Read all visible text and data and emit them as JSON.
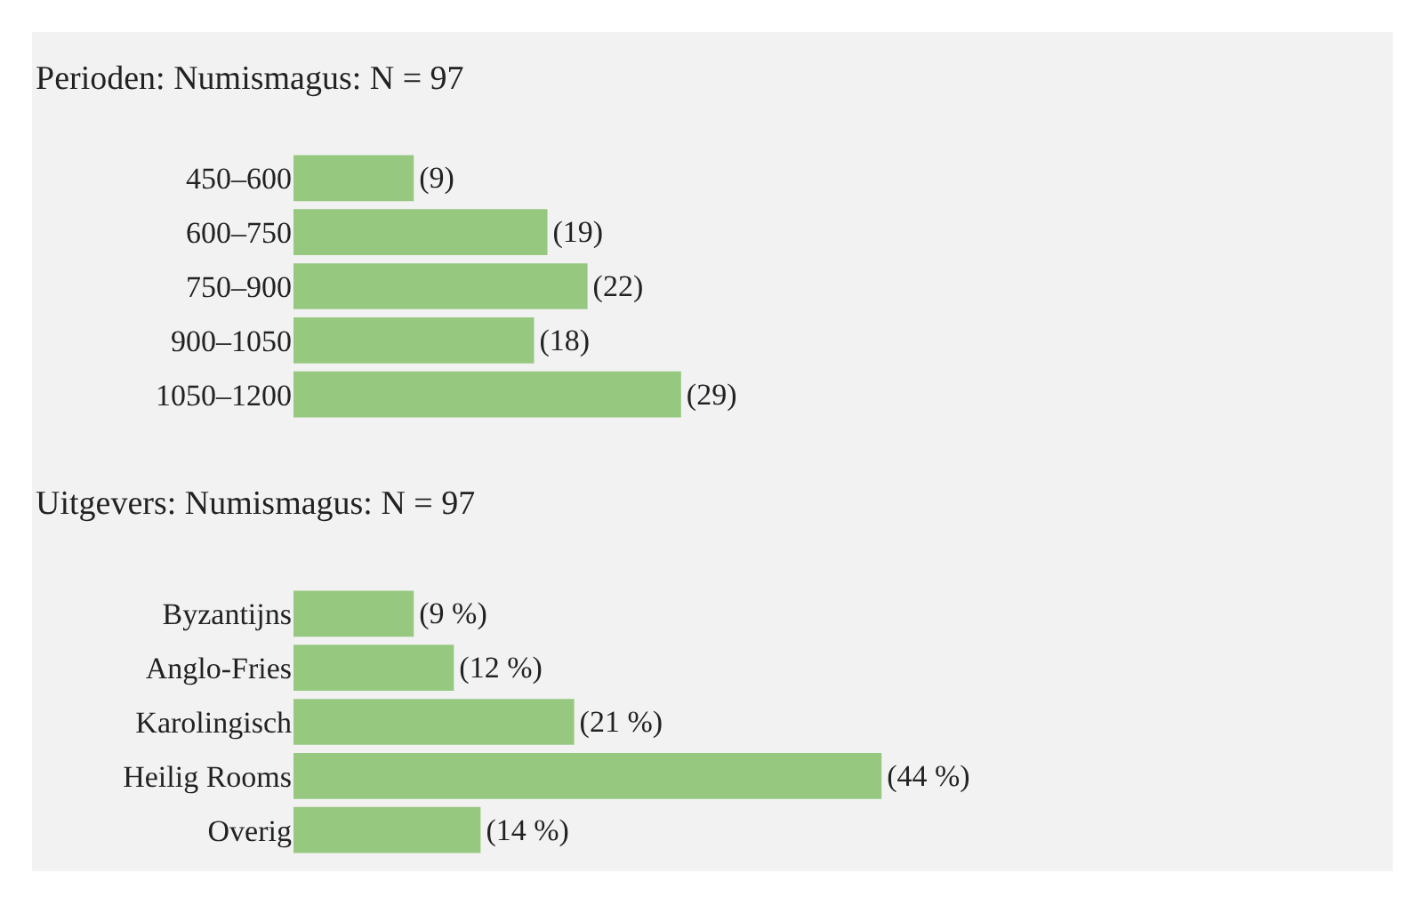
{
  "chart_data": [
    {
      "type": "bar",
      "orientation": "horizontal",
      "title": "Perioden: Numismagus: N = 97",
      "categories": [
        "450–600",
        "600–750",
        "750–900",
        "900–1050",
        "1050–1200"
      ],
      "values": [
        9,
        19,
        22,
        18,
        29
      ],
      "color": "#96c880",
      "value_labels": [
        "(9)",
        "(19)",
        "(22)",
        "(18)",
        "(29)"
      ],
      "tick_labels": "y",
      "grid": false,
      "legend": false
    },
    {
      "type": "bar",
      "orientation": "horizontal",
      "title": "Uitgevers: Numismagus: N = 97",
      "categories": [
        "Byzantijns",
        "Anglo-Fries",
        "Karolingisch",
        "Heilig Rooms",
        "Overig"
      ],
      "values": [
        9,
        12,
        21,
        44,
        14
      ],
      "color": "#96c880",
      "value_labels": [
        "(9 %)",
        "(12 %)",
        "(21 %)",
        "(44 %)",
        "(14 %)"
      ],
      "tick_labels": "y",
      "grid": false,
      "legend": false
    }
  ]
}
